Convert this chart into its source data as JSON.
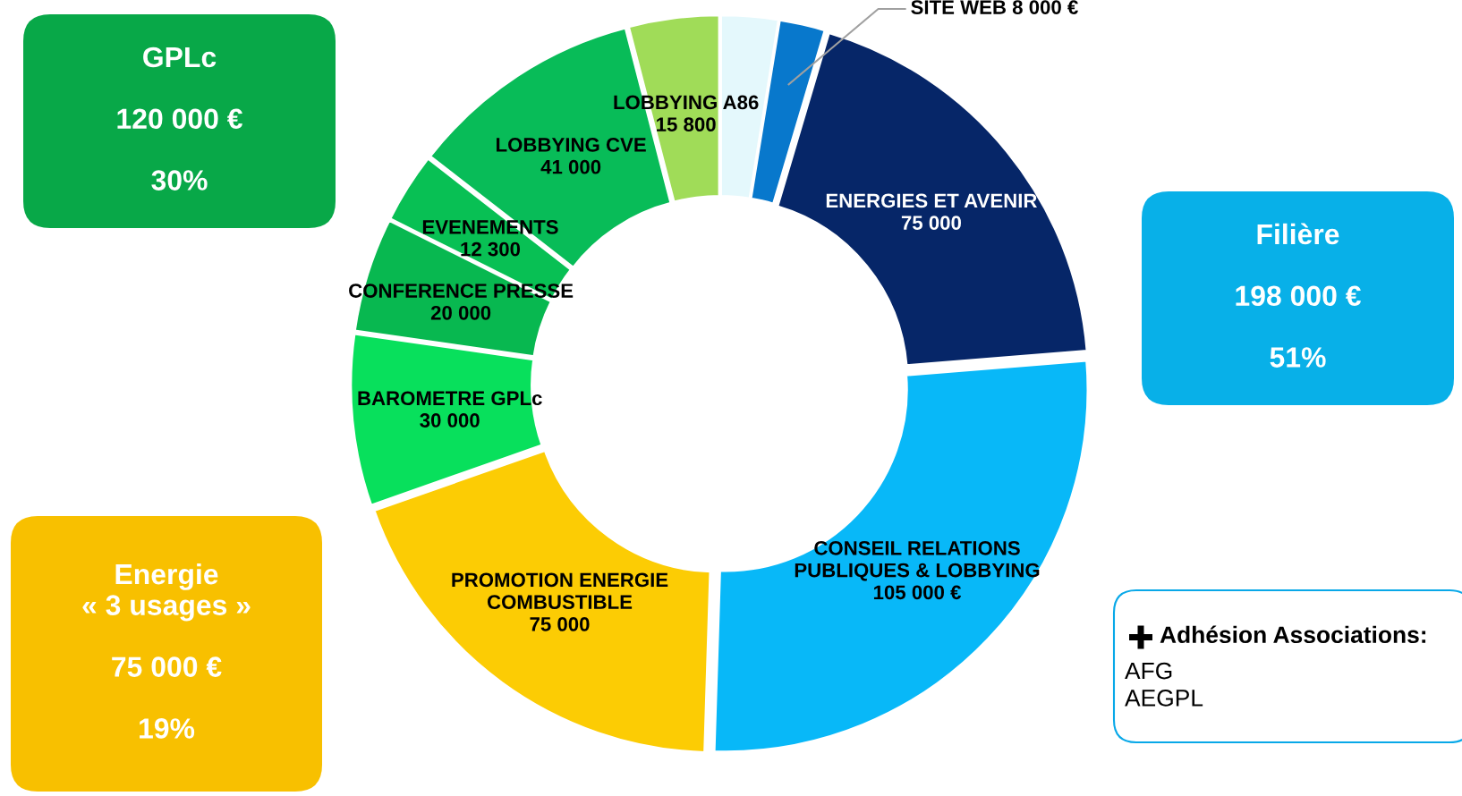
{
  "chart_data": {
    "type": "donut",
    "categories": [
      null,
      "SITE WEB",
      "ENERGIES ET AVENIR",
      "CONSEIL RELATIONS\nPUBLIQUES & LOBBYING",
      "PROMOTION ENERGIE\nCOMBUSTIBLE",
      "BAROMETRE GPLc",
      "CONFERENCE PRESSE",
      "EVENEMENTS",
      "LOBBYING CVE",
      "LOBBYING A86"
    ],
    "values": [
      10000,
      8000,
      75000,
      105000,
      75000,
      30000,
      20000,
      12300,
      41000,
      15800
    ],
    "value_labels": [
      null,
      "8 000 €",
      "75 000",
      "105 000 €",
      "75 000",
      "30 000",
      "20 000",
      "12 300",
      "41 000",
      "15 800"
    ],
    "colors": [
      "#e4f8fc",
      "#0878cc",
      "#062668",
      "#08b8f8",
      "#fccc04",
      "#08e05c",
      "#08b850",
      "#08c054",
      "#08bc58",
      "#a0dc58"
    ],
    "annotations": [
      "GPLc\n\n120 000 €\n\n30%",
      "Filière\n\n198 000 €\n\n51%",
      "Energie\n« 3 usages »\n\n75 000 €\n\n19%",
      "Adhésion Associations:",
      "AFG\nAEGPL"
    ]
  }
}
